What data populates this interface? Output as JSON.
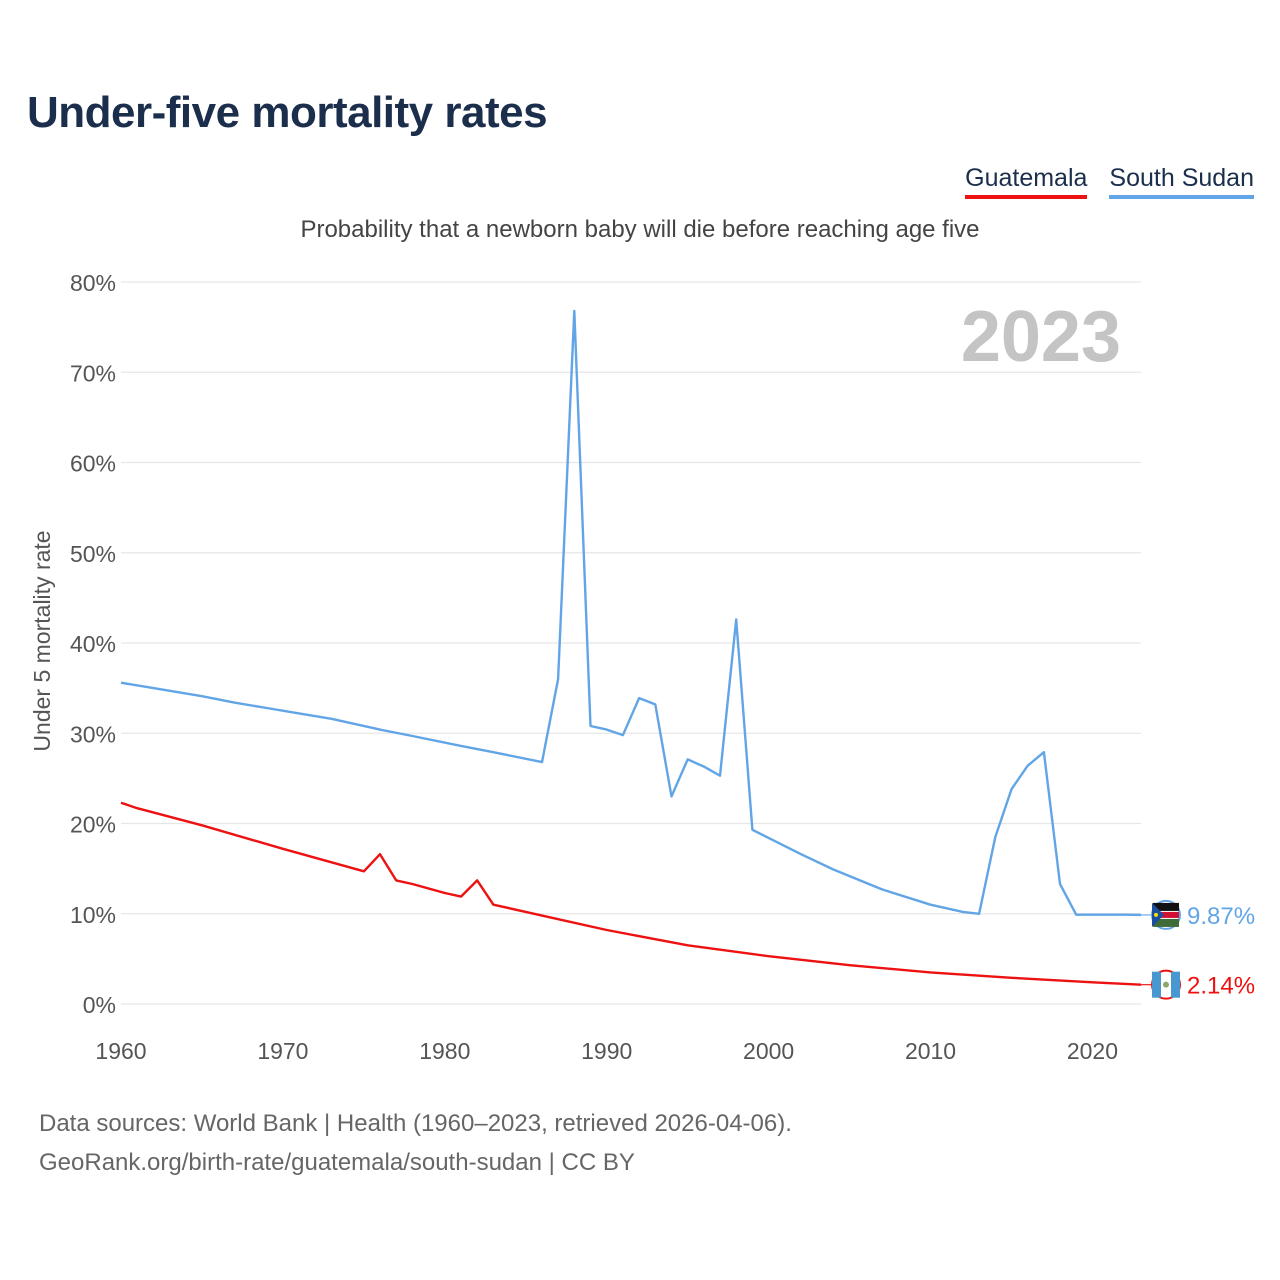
{
  "title": "Under-five mortality rates",
  "subtitle": "Probability that a newborn baby will die before reaching age five",
  "legend": [
    {
      "label": "Guatemala",
      "color": "#ee1111"
    },
    {
      "label": "South Sudan",
      "color": "#62a5e6"
    }
  ],
  "source": {
    "line1": "Data sources: World Bank | Health (1960–2023, retrieved 2026-04-06).",
    "line2": "GeoRank.org/birth-rate/guatemala/south-sudan | CC BY"
  },
  "chart_data": {
    "type": "line",
    "title": "Under-five mortality rates",
    "ylabel": "Under 5 mortality rate",
    "xlabel": "",
    "xlim": [
      1960,
      2023
    ],
    "ylim": [
      0,
      80
    ],
    "x_ticks": [
      1960,
      1970,
      1980,
      1990,
      2000,
      2010,
      2020
    ],
    "y_ticks": [
      0,
      10,
      20,
      30,
      40,
      50,
      60,
      70,
      80
    ],
    "y_tick_labels": [
      "0%",
      "10%",
      "20%",
      "30%",
      "40%",
      "50%",
      "60%",
      "70%",
      "80%"
    ],
    "x_tick_labels": [
      "1960",
      "1970",
      "1980",
      "1990",
      "2000",
      "2010",
      "2020"
    ],
    "year_label": "2023",
    "grid": true,
    "series": [
      {
        "name": "South Sudan",
        "color": "#62a5e6",
        "end_label": "9.87%",
        "points": [
          [
            1960,
            35.6
          ],
          [
            1962,
            35.0
          ],
          [
            1965,
            34.1
          ],
          [
            1967,
            33.4
          ],
          [
            1969,
            32.8
          ],
          [
            1971,
            32.2
          ],
          [
            1973,
            31.6
          ],
          [
            1976,
            30.4
          ],
          [
            1978,
            29.7
          ],
          [
            1981,
            28.6
          ],
          [
            1983,
            27.9
          ],
          [
            1986,
            26.8
          ],
          [
            1987,
            36.0
          ],
          [
            1988,
            76.8
          ],
          [
            1989,
            30.8
          ],
          [
            1990,
            30.4
          ],
          [
            1991,
            29.8
          ],
          [
            1992,
            33.9
          ],
          [
            1993,
            33.2
          ],
          [
            1994,
            23.0
          ],
          [
            1995,
            27.1
          ],
          [
            1996,
            26.3
          ],
          [
            1997,
            25.3
          ],
          [
            1998,
            42.6
          ],
          [
            1999,
            19.3
          ],
          [
            2000,
            18.4
          ],
          [
            2002,
            16.6
          ],
          [
            2004,
            14.9
          ],
          [
            2007,
            12.7
          ],
          [
            2010,
            11.0
          ],
          [
            2012,
            10.2
          ],
          [
            2013,
            10.0
          ],
          [
            2014,
            18.5
          ],
          [
            2015,
            23.8
          ],
          [
            2016,
            26.4
          ],
          [
            2017,
            27.9
          ],
          [
            2018,
            13.3
          ],
          [
            2019,
            9.9
          ],
          [
            2020,
            9.9
          ],
          [
            2021,
            9.9
          ],
          [
            2022,
            9.9
          ],
          [
            2023,
            9.87
          ]
        ]
      },
      {
        "name": "Guatemala",
        "color": "#ee1111",
        "end_label": "2.14%",
        "points": [
          [
            1960,
            22.3
          ],
          [
            1961,
            21.7
          ],
          [
            1965,
            19.8
          ],
          [
            1970,
            17.2
          ],
          [
            1975,
            14.7
          ],
          [
            1976,
            16.6
          ],
          [
            1977,
            13.7
          ],
          [
            1978,
            13.3
          ],
          [
            1980,
            12.3
          ],
          [
            1981,
            11.9
          ],
          [
            1982,
            13.7
          ],
          [
            1983,
            11.0
          ],
          [
            1984,
            10.6
          ],
          [
            1986,
            9.8
          ],
          [
            1990,
            8.2
          ],
          [
            1995,
            6.5
          ],
          [
            2000,
            5.3
          ],
          [
            2005,
            4.3
          ],
          [
            2010,
            3.5
          ],
          [
            2015,
            2.9
          ],
          [
            2020,
            2.4
          ],
          [
            2023,
            2.14
          ]
        ]
      }
    ]
  }
}
